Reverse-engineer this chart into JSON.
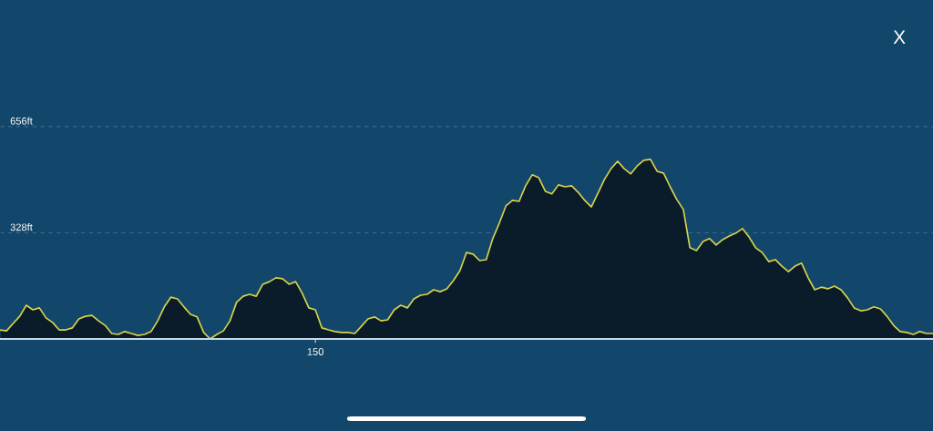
{
  "chart_data": {
    "type": "area",
    "categories": [
      null,
      null,
      null,
      null,
      null,
      null,
      null,
      null,
      null,
      null,
      null,
      null,
      null,
      null,
      null,
      null,
      null,
      null,
      null,
      null,
      null,
      null,
      null,
      null,
      null,
      null,
      null,
      null,
      null,
      null,
      null,
      null,
      null,
      null,
      null,
      null,
      null,
      null,
      null,
      null,
      null,
      null,
      null,
      null,
      null,
      null,
      null,
      null,
      "150",
      null,
      null,
      null,
      null,
      null,
      null,
      null,
      null,
      null,
      null,
      null,
      null,
      null,
      null,
      null,
      null,
      null,
      null,
      null,
      null,
      null,
      null,
      null,
      null,
      null,
      null,
      null,
      null,
      null,
      null,
      null,
      null,
      null,
      null,
      null,
      null,
      null,
      null,
      null,
      null,
      null,
      null,
      null,
      null,
      null,
      null,
      null,
      null,
      null,
      null,
      null,
      null,
      null,
      null,
      null,
      null,
      null,
      null,
      null,
      null,
      null,
      null,
      null,
      null,
      null,
      null,
      null,
      null,
      null,
      null,
      null,
      null,
      null,
      null,
      null,
      null,
      null,
      null,
      null,
      null,
      null,
      null,
      null,
      null,
      null,
      null,
      null,
      null,
      null,
      null,
      null,
      null,
      null,
      null
    ],
    "series": [
      {
        "color": "#d9d24a",
        "values": [
          28,
          25,
          48,
          70,
          104,
          90,
          96,
          65,
          51,
          28,
          28,
          34,
          62,
          70,
          73,
          56,
          42,
          17,
          14,
          23,
          17,
          11,
          14,
          23,
          56,
          99,
          129,
          124,
          99,
          76,
          68,
          20,
          0,
          14,
          25,
          56,
          113,
          132,
          138,
          132,
          169,
          177,
          189,
          186,
          169,
          177,
          141,
          96,
          90,
          34,
          28,
          23,
          20,
          20,
          17,
          39,
          62,
          68,
          56,
          59,
          90,
          104,
          96,
          124,
          135,
          138,
          152,
          146,
          155,
          180,
          211,
          267,
          262,
          242,
          245,
          310,
          358,
          411,
          428,
          425,
          473,
          507,
          498,
          456,
          448,
          476,
          470,
          473,
          453,
          428,
          408,
          450,
          493,
          526,
          549,
          526,
          510,
          535,
          552,
          555,
          518,
          512,
          470,
          431,
          400,
          282,
          273,
          301,
          310,
          290,
          307,
          318,
          327,
          341,
          315,
          282,
          267,
          239,
          245,
          225,
          208,
          225,
          234,
          189,
          152,
          160,
          155,
          163,
          152,
          127,
          96,
          87,
          90,
          99,
          93,
          70,
          42,
          23,
          20,
          14,
          23,
          17,
          17
        ]
      }
    ],
    "ylim": [
      0,
      1047
    ],
    "yticks": [
      {
        "value": 328,
        "label": "328ft"
      },
      {
        "value": 656,
        "label": "656ft"
      }
    ],
    "grid": "y",
    "line_style": "solid",
    "annotations": [
      "X"
    ]
  }
}
